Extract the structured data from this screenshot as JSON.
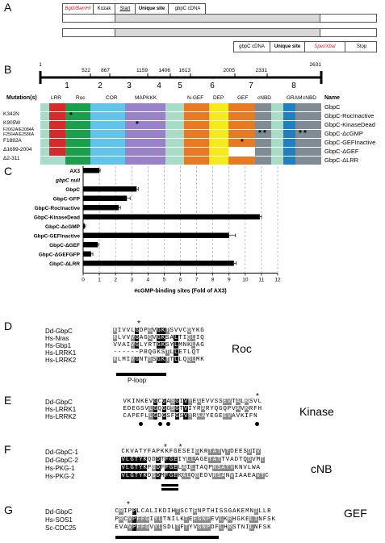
{
  "panelA": {
    "letter": "A",
    "top_cells": [
      "BglII/BamHI",
      "Kozak",
      "Start",
      "Unique site",
      "gbpC cDNA"
    ],
    "bottom_cells": [
      "gbpC cDNA",
      "Unique site",
      "SpeI/XbaI",
      "Stop"
    ]
  },
  "panelB": {
    "letter": "B",
    "ruler_ticks": [
      "1",
      "522",
      "867",
      "1159",
      "1406",
      "1613",
      "2005",
      "2331",
      "2631"
    ],
    "segment_numbers": [
      "1",
      "2",
      "3",
      "4",
      "5",
      "6",
      "7",
      "8"
    ],
    "header_mutations": "Mutation(s)",
    "header_name": "Name",
    "domain_labels": [
      "LRR",
      "Roc",
      "COR",
      "MAPKKK",
      "N-GEF",
      "DEP",
      "GEF",
      "cNBD",
      "GRAM",
      "cNBD"
    ],
    "domain_colors": {
      "LRR": "#d82a2a",
      "Roc": "#1aa04a",
      "COR": "#62c4e8",
      "MAPKKK": "#9a82c8",
      "NGEF": "#e77a23",
      "DEP": "#f5ea1a",
      "GEF": "#e77a23",
      "cNBD": "#7f8c96",
      "GRAM": "#1e7fc2",
      "linker": "#a9dcc8"
    },
    "rows": [
      {
        "mutation": "",
        "name": "GbpC"
      },
      {
        "mutation": "K342N",
        "name": "GbpC-RocInactive"
      },
      {
        "mutation": "K905W",
        "name": "GbpC-KinaseDead"
      },
      {
        "mutation": "F2062A/E2084A\nF2564A/E2586A",
        "name": "GbpC-ΔcGMP"
      },
      {
        "mutation": "F1892A",
        "name": "GbpC-GEFInactive"
      },
      {
        "mutation": "Δ1699-2004",
        "name": "GbpC-ΔGEF"
      },
      {
        "mutation": "Δ2-311",
        "name": "GbpC-ΔLRR"
      }
    ]
  },
  "panelC": {
    "letter": "C",
    "chart_data": {
      "type": "bar",
      "orientation": "horizontal",
      "categories": [
        "AX3",
        "gbpC null",
        "GbpC",
        "GbpC-GFP",
        "GbpC-RocInactive",
        "GbpC-KinaseDead",
        "GbpC-ΔcGMP",
        "GbpC-GEFInactive",
        "GbpC-ΔGEF",
        "GbpC-ΔGEFGFP",
        "GbpC-ΔLRR"
      ],
      "values": [
        1.0,
        0.0,
        3.3,
        2.7,
        2.2,
        10.9,
        0.1,
        9.0,
        0.9,
        0.5,
        9.3
      ],
      "errors": [
        0.05,
        0.0,
        0.1,
        0.2,
        0.1,
        0.1,
        0.05,
        0.4,
        0.05,
        0.1,
        0.15
      ],
      "xlim": [
        0,
        12
      ],
      "xticks": [
        "0",
        "1",
        "2",
        "3",
        "4",
        "5",
        "6",
        "7",
        "8",
        "9",
        "10",
        "11",
        "12"
      ],
      "xlabel": "#cGMP-binding sites (Fold of AX3)",
      "grid": "vertical dashed"
    }
  },
  "panelD": {
    "letter": "D",
    "title": "Roc",
    "names": [
      "Dd-GbpC",
      "Hs-Nras",
      "Hs-Gbp1",
      "Hs-LRRK1",
      "Hs-LRRK2"
    ],
    "seqs": [
      "KIVVLGDPGVGKTSVVCQYKG",
      "KLVVVGAGGVGKSALTIQLIQ",
      "VVAIVGLYRTGKSYLMNKLAG",
      "------PRQGKSTLLETLQT",
      "KLMIVGNTGSGKTTLLQQLMK"
    ],
    "motif": "P-loop"
  },
  "panelE": {
    "letter": "E",
    "title": "Kinase",
    "names": [
      "Dd-GbpC",
      "Hs-LRRK1",
      "Hs-LRRK2"
    ],
    "seqs": [
      "VKINKEVGCGASGIVYEAEVVSSEVTALKSVL",
      "EDEGSVLGQGGSGTVIYRARYQGQPVAVKRFH",
      "CAPEFLLGDGSFGSVYRAAYEGEEVAVKIFN"
    ]
  },
  "panelF": {
    "letter": "F",
    "title": "cNB",
    "names": [
      "Dd-GbpC-1",
      "Dd-GbpC-2",
      "Hs-PKG-1",
      "Hs-PKG-2"
    ],
    "seqs": [
      "CKVATYFAPKKFGESEIGKRTATVTDEESDIV",
      "VLGTYKQDDTFGEIYLLAGETATTVADTQDVMT",
      "VLGTYKPGDFFGELAILTAQPRSATVKNVLWA",
      "VLGTYKDGDMFGEKALQGEDVRSANVIAAEAVTC"
    ],
    "stars": "* *"
  },
  "panelG": {
    "letter": "G",
    "title": "GEF",
    "names": [
      "Dd-GbpC",
      "Hs-SOS1",
      "Sc-CDC25"
    ],
    "seqs": [
      "CRIPPLCALIKDIHTSCTENPTHISSGAKEMNILLR",
      "PRCVPFFGIYLTNILKTEEGNPEVLKRHGKELINFSK",
      "EVAVPFFGVYLSDLTFTYVGNPDFLHRSTNILNFSK"
    ],
    "stars": "*"
  }
}
